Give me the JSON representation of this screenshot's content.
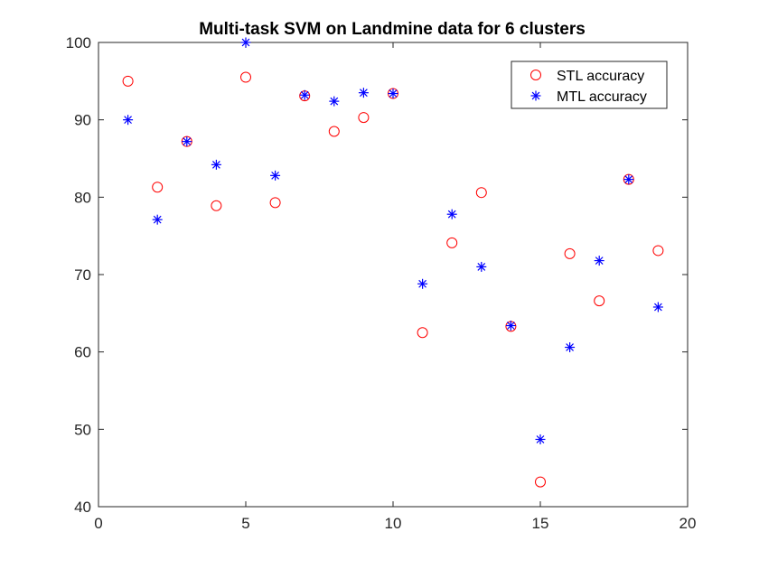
{
  "chart_data": {
    "type": "scatter",
    "title": "Multi-task SVM on Landmine data for 6 clusters",
    "xlabel": "",
    "ylabel": "",
    "xlim": [
      0,
      20
    ],
    "ylim": [
      40,
      100
    ],
    "xticks": [
      0,
      5,
      10,
      15,
      20
    ],
    "yticks": [
      40,
      50,
      60,
      70,
      80,
      90,
      100
    ],
    "grid": false,
    "legend_position": "top-right",
    "series": [
      {
        "name": "STL accuracy",
        "marker": "circle",
        "color": "#ff0000",
        "x": [
          1,
          2,
          3,
          4,
          5,
          6,
          7,
          8,
          9,
          10,
          11,
          12,
          13,
          14,
          15,
          16,
          17,
          18,
          19
        ],
        "y": [
          95.0,
          81.3,
          87.2,
          78.9,
          95.5,
          79.3,
          93.1,
          88.5,
          90.3,
          93.4,
          62.5,
          74.1,
          80.6,
          63.3,
          43.2,
          72.7,
          66.6,
          82.3,
          73.1
        ]
      },
      {
        "name": "MTL accuracy",
        "marker": "asterisk",
        "color": "#0000ff",
        "x": [
          1,
          2,
          3,
          4,
          5,
          6,
          7,
          8,
          9,
          10,
          11,
          12,
          13,
          14,
          15,
          16,
          17,
          18,
          19
        ],
        "y": [
          90.0,
          77.1,
          87.2,
          84.2,
          100.0,
          82.8,
          93.2,
          92.4,
          93.5,
          93.4,
          68.8,
          77.8,
          71.0,
          63.4,
          48.7,
          60.6,
          71.8,
          82.3,
          65.8
        ]
      }
    ]
  }
}
